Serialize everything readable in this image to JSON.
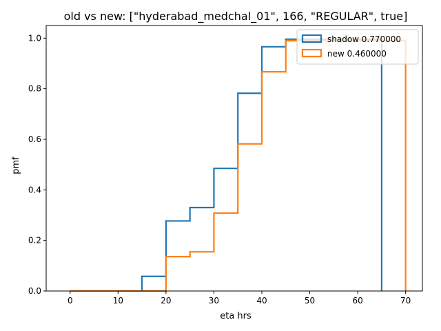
{
  "chart_data": {
    "type": "line",
    "title": "old vs new: [\"hyderabad_medchal_01\", 166, \"REGULAR\", true]",
    "xlabel": "eta hrs",
    "ylabel": "pmf",
    "xlim": [
      -5,
      73.5
    ],
    "ylim": [
      0,
      1.05
    ],
    "xticks": [
      0,
      10,
      20,
      30,
      40,
      50,
      60,
      70
    ],
    "yticks": [
      0.0,
      0.2,
      0.4,
      0.6,
      0.8,
      1.0
    ],
    "xtick_labels": [
      "0",
      "10",
      "20",
      "30",
      "40",
      "50",
      "60",
      "70"
    ],
    "ytick_labels": [
      "0.0",
      "0.2",
      "0.4",
      "0.6",
      "0.8",
      "1.0"
    ],
    "grid": false,
    "legend_position": "top-right",
    "series": [
      {
        "name": "shadow 0.770000",
        "color": "#1f77b4",
        "x": [
          0,
          15,
          15,
          20,
          20,
          25,
          25,
          30,
          30,
          35,
          35,
          40,
          40,
          45,
          45,
          65,
          65
        ],
        "y": [
          0,
          0,
          0.058,
          0.058,
          0.277,
          0.277,
          0.33,
          0.33,
          0.485,
          0.485,
          0.782,
          0.782,
          0.966,
          0.966,
          0.996,
          0.996,
          0
        ]
      },
      {
        "name": "new 0.460000",
        "color": "#ff7f0e",
        "x": [
          0,
          20,
          20,
          25,
          25,
          30,
          30,
          35,
          35,
          40,
          40,
          45,
          45,
          70,
          70
        ],
        "y": [
          0,
          0,
          0.136,
          0.136,
          0.155,
          0.155,
          0.308,
          0.308,
          0.582,
          0.582,
          0.867,
          0.867,
          0.99,
          0.99,
          0
        ]
      }
    ]
  }
}
